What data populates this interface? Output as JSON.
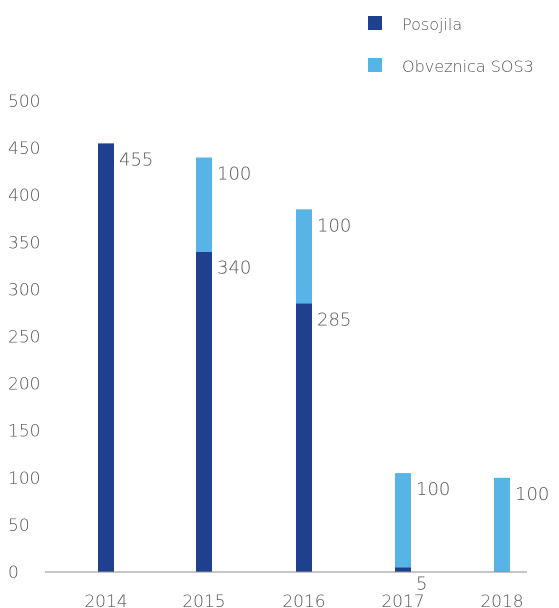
{
  "chart_data": {
    "type": "bar",
    "stacked": true,
    "categories": [
      "2014",
      "2015",
      "2016",
      "2017",
      "2018"
    ],
    "series": [
      {
        "name": "Posojila",
        "values": [
          455,
          340,
          285,
          5,
          0
        ],
        "color": "#1f3f8f"
      },
      {
        "name": "Obveznica SOS3",
        "values": [
          0,
          100,
          100,
          100,
          100
        ],
        "color": "#56b4e6"
      }
    ],
    "y_ticks": [
      0,
      50,
      100,
      150,
      200,
      250,
      300,
      350,
      400,
      450,
      500
    ],
    "ylim": [
      0,
      500
    ],
    "data_labels": [
      {
        "series": 0,
        "category": 0,
        "text": "455"
      },
      {
        "series": 0,
        "category": 1,
        "text": "340"
      },
      {
        "series": 1,
        "category": 1,
        "text": "100"
      },
      {
        "series": 0,
        "category": 2,
        "text": "285"
      },
      {
        "series": 1,
        "category": 2,
        "text": "100"
      },
      {
        "series": 0,
        "category": 3,
        "text": "5"
      },
      {
        "series": 1,
        "category": 3,
        "text": "100"
      },
      {
        "series": 1,
        "category": 4,
        "text": "100"
      }
    ],
    "legend_position": "top-right",
    "grid": false,
    "title": "",
    "xlabel": "",
    "ylabel": ""
  }
}
